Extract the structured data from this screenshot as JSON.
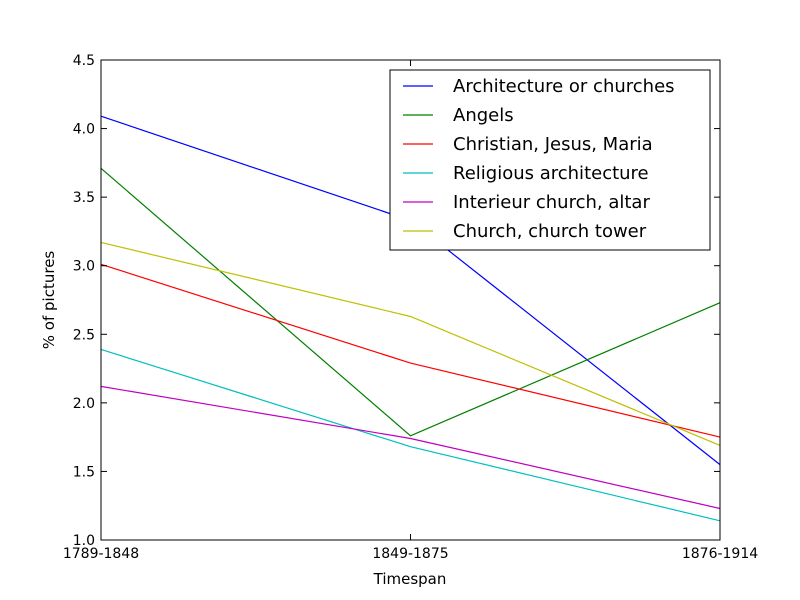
{
  "chart_data": {
    "type": "line",
    "title": "",
    "xlabel": "Timespan",
    "ylabel": "% of pictures",
    "categories": [
      "1789-1848",
      "1849-1875",
      "1876-1914"
    ],
    "ylim": [
      1.0,
      4.5
    ],
    "yticks": [
      "1.0",
      "1.5",
      "2.0",
      "2.5",
      "3.0",
      "3.5",
      "4.0",
      "4.5"
    ],
    "grid": false,
    "legend_position": "top-right",
    "series": [
      {
        "name": "Architecture or churches",
        "color": "#0000ff",
        "values": [
          4.09,
          3.33,
          1.55
        ]
      },
      {
        "name": "Angels",
        "color": "#008000",
        "values": [
          3.71,
          1.76,
          2.73
        ]
      },
      {
        "name": "Christian, Jesus, Maria",
        "color": "#ff0000",
        "values": [
          3.01,
          2.29,
          1.75
        ]
      },
      {
        "name": "Religious architecture",
        "color": "#00bfbf",
        "values": [
          2.39,
          1.68,
          1.14
        ]
      },
      {
        "name": "Interieur church, altar",
        "color": "#bf00bf",
        "values": [
          2.12,
          1.74,
          1.23
        ]
      },
      {
        "name": "Church, church tower",
        "color": "#bfbf00",
        "values": [
          3.17,
          2.63,
          1.69
        ]
      }
    ]
  }
}
